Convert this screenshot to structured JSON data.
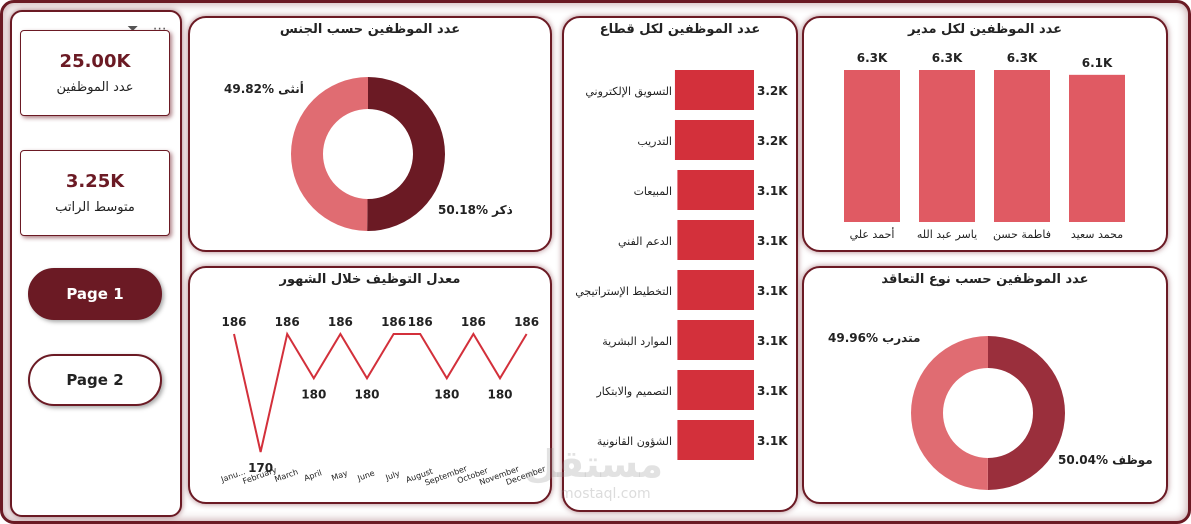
{
  "kpis": [
    {
      "value": "25.00K",
      "label": "عدد الموظفين"
    },
    {
      "value": "3.25K",
      "label": "متوسط الراتب"
    }
  ],
  "nav": {
    "page1": "Page 1",
    "page2": "Page 2"
  },
  "toolbar": {
    "filter_icon": "filter-icon",
    "more_icon": "more-icon",
    "more_glyph": "⋯",
    "filter_glyph": "⏷"
  },
  "colors": {
    "dark": "#6b1a24",
    "accent": "#d3303b",
    "pink": "#e06c72",
    "bar": "#e05a63"
  },
  "gender": {
    "title": "عدد الموظفين حسب الجنس",
    "female_label": "49.82% أنثى",
    "male_label": "50.18% ذكر",
    "chart_data": {
      "type": "pie",
      "categories": [
        "أنثى",
        "ذكر"
      ],
      "values": [
        49.82,
        50.18
      ],
      "colors": [
        "#e06c72",
        "#6b1a24"
      ],
      "donut": true
    }
  },
  "sector": {
    "title": "عدد الموظفين لكل قطاع",
    "chart_data": {
      "type": "bar",
      "orientation": "horizontal",
      "categories": [
        "التسويق الإلكتروني",
        "التدريب",
        "المبيعات",
        "الدعم الفني",
        "التخطيط الإستراتيجي",
        "الموارد البشرية",
        "التصميم والابتكار",
        "الشؤون القانونية"
      ],
      "values": [
        3.2,
        3.2,
        3.1,
        3.1,
        3.1,
        3.1,
        3.1,
        3.1
      ],
      "labels": [
        "3.2K",
        "3.2K",
        "3.1K",
        "3.1K",
        "3.1K",
        "3.1K",
        "3.1K",
        "3.1K"
      ]
    }
  },
  "manager": {
    "title": "عدد الموظفين لكل مدير",
    "chart_data": {
      "type": "bar",
      "categories": [
        "أحمد علي",
        "ياسر عبد الله",
        "فاطمة حسن",
        "محمد سعيد"
      ],
      "values": [
        6.3,
        6.3,
        6.3,
        6.1
      ],
      "labels": [
        "6.3K",
        "6.3K",
        "6.3K",
        "6.1K"
      ]
    }
  },
  "hiring": {
    "title": "معدل التوظيف خلال الشهور",
    "chart_data": {
      "type": "line",
      "categories": [
        "Janu...",
        "February",
        "March",
        "April",
        "May",
        "June",
        "July",
        "August",
        "September",
        "October",
        "November",
        "December"
      ],
      "values": [
        186,
        170,
        186,
        180,
        186,
        180,
        186,
        186,
        180,
        186,
        180,
        186
      ]
    }
  },
  "contract": {
    "title": "عدد الموظفين حسب نوع التعاقد",
    "trainee_label": "49.96% متدرب",
    "employee_label": "50.04% موظف",
    "chart_data": {
      "type": "pie",
      "categories": [
        "متدرب",
        "موظف"
      ],
      "values": [
        49.96,
        50.04
      ],
      "colors": [
        "#e06c72",
        "#9a2f3c"
      ],
      "donut": true
    }
  },
  "watermark": {
    "text": "مستقل",
    "sub": "mostaql.com"
  }
}
